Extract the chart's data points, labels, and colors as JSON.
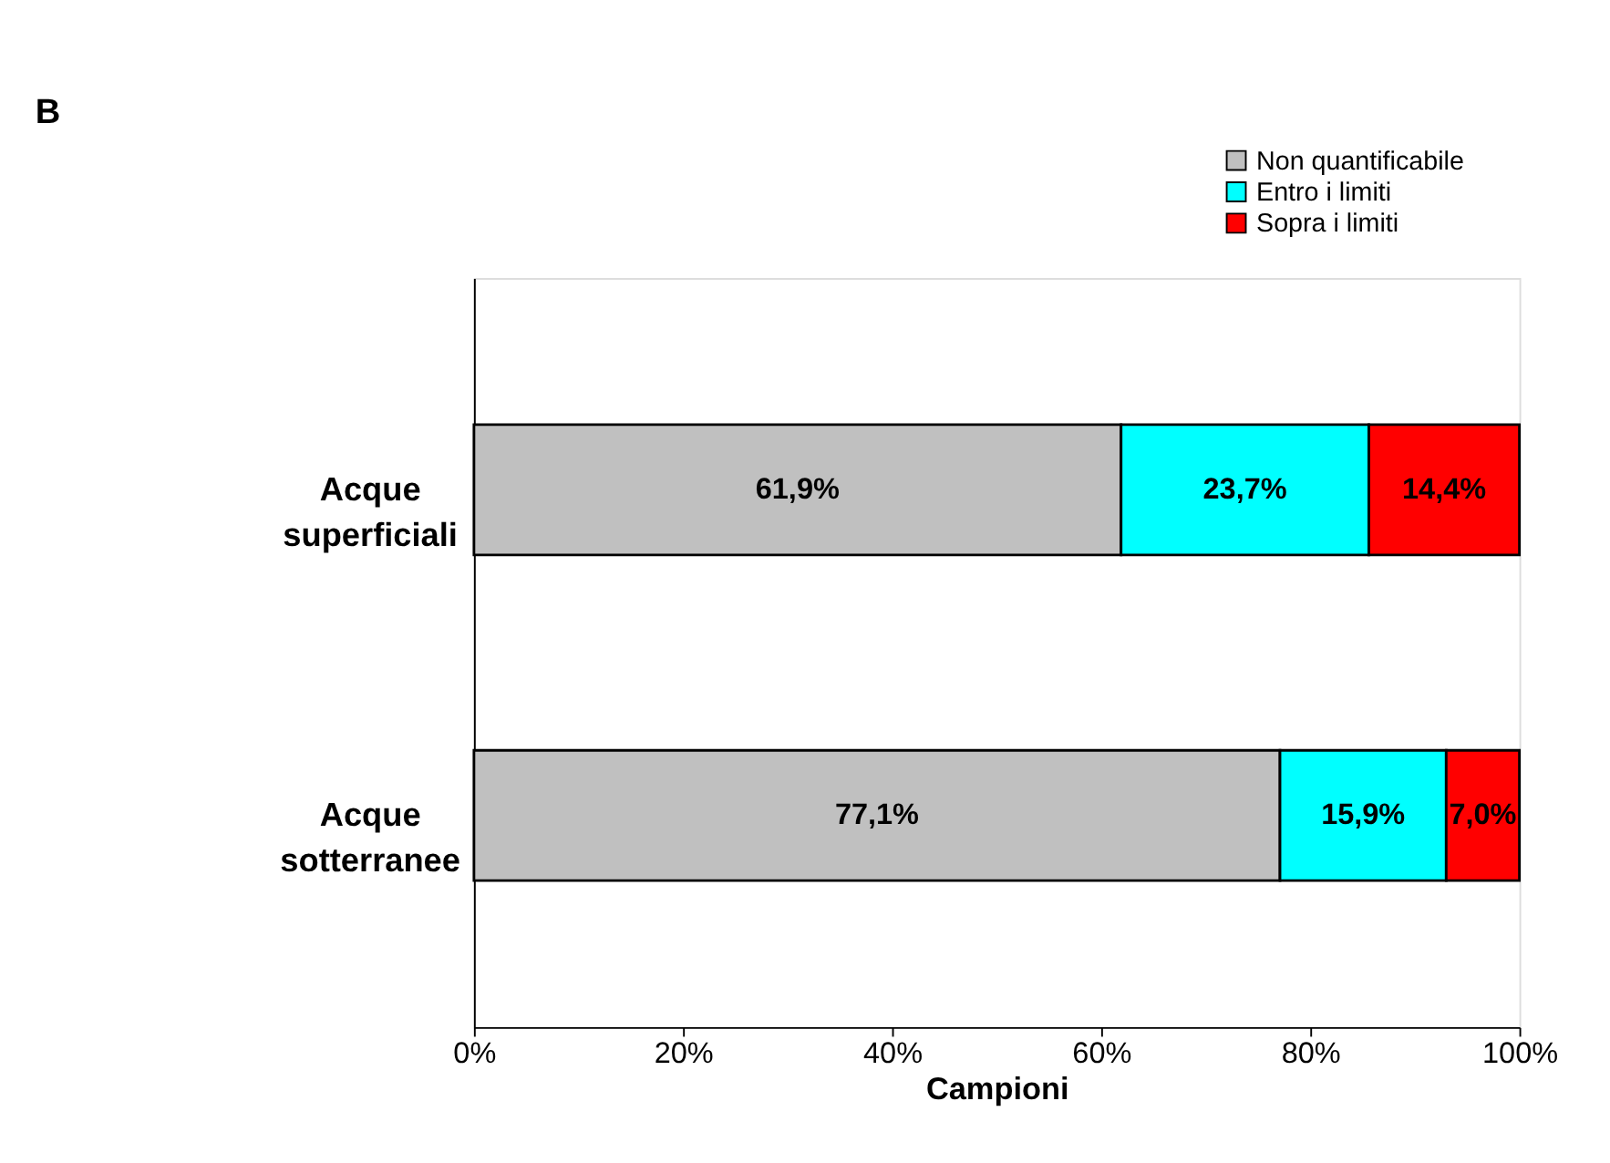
{
  "chart_data": {
    "type": "bar",
    "title": "B",
    "orientation": "horizontal",
    "stacked": true,
    "categories": [
      "Acque superficiali",
      "Acque sotterranee"
    ],
    "series": [
      {
        "name": "Non quantificabile",
        "color": "#c0c0c0",
        "values": [
          61.9,
          77.1
        ],
        "value_labels": [
          "61,9%",
          "77,1%"
        ]
      },
      {
        "name": "Entro i limiti",
        "color": "#00ffff",
        "values": [
          23.7,
          15.9
        ],
        "value_labels": [
          "23,7%",
          "15,9%"
        ]
      },
      {
        "name": "Sopra i limiti",
        "color": "#ff0000",
        "values": [
          14.4,
          7.0
        ],
        "value_labels": [
          "14,4%",
          "7,0%"
        ]
      }
    ],
    "xlabel": "Campioni",
    "xlim": [
      0,
      100
    ],
    "xticks": [
      {
        "value": 0,
        "label": "0%"
      },
      {
        "value": 20,
        "label": "20%"
      },
      {
        "value": 40,
        "label": "40%"
      },
      {
        "value": 60,
        "label": "60%"
      },
      {
        "value": 80,
        "label": "80%"
      },
      {
        "value": 100,
        "label": "100%"
      }
    ],
    "legend": "top right",
    "grid": false
  }
}
